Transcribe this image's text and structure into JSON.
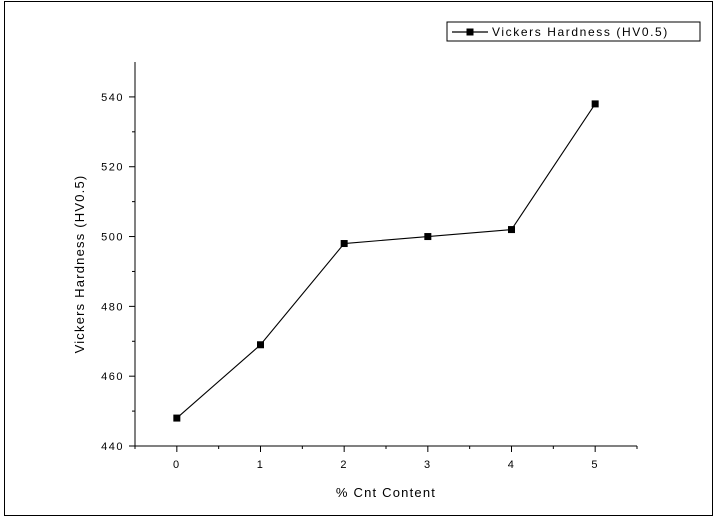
{
  "chart_data": {
    "type": "line",
    "title": "",
    "xlabel": "% Cnt Content",
    "ylabel": "Vickers Hardness (HV0.5)",
    "xlim": [
      -0.5,
      5.5
    ],
    "ylim": [
      440,
      550
    ],
    "x_ticks": [
      0,
      1,
      2,
      3,
      4,
      5
    ],
    "y_ticks": [
      440,
      460,
      480,
      500,
      520,
      540
    ],
    "grid": false,
    "legend_position": "top-right",
    "series": [
      {
        "name": "Vickers Hardness (HV0.5)",
        "color": "#000000",
        "marker": "square",
        "x": [
          0,
          1,
          2,
          3,
          4,
          5
        ],
        "y": [
          448,
          469,
          498,
          500,
          502,
          538
        ]
      }
    ]
  }
}
